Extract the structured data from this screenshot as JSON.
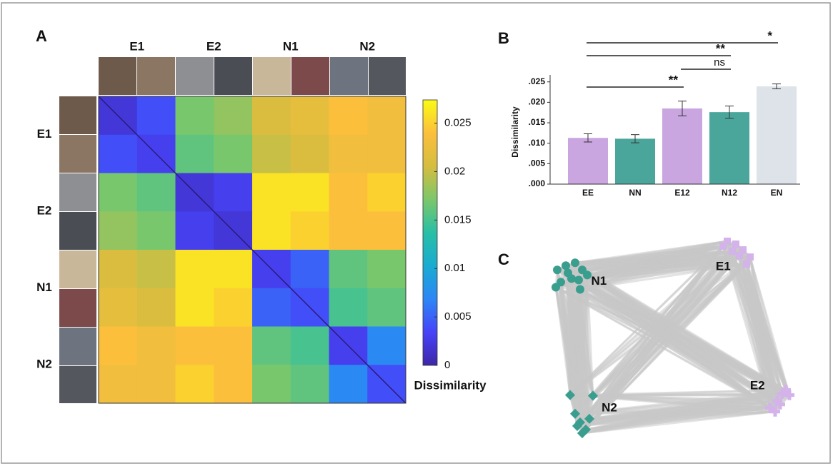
{
  "chart_data": [
    {
      "type": "heatmap",
      "panel_label": "A",
      "row_labels": [
        "E1",
        "E2",
        "N1",
        "N2"
      ],
      "col_labels": [
        "E1",
        "E2",
        "N1",
        "N2"
      ],
      "values": [
        [
          0.002,
          0.004,
          0.017,
          0.018,
          0.021,
          0.022,
          0.024,
          0.023
        ],
        [
          0.004,
          0.003,
          0.016,
          0.017,
          0.02,
          0.021,
          0.023,
          0.023
        ],
        [
          0.017,
          0.016,
          0.002,
          0.003,
          0.026,
          0.026,
          0.024,
          0.025
        ],
        [
          0.018,
          0.017,
          0.003,
          0.002,
          0.026,
          0.025,
          0.024,
          0.024
        ],
        [
          0.021,
          0.02,
          0.026,
          0.026,
          0.003,
          0.005,
          0.016,
          0.017
        ],
        [
          0.022,
          0.021,
          0.026,
          0.025,
          0.005,
          0.004,
          0.015,
          0.016
        ],
        [
          0.024,
          0.023,
          0.024,
          0.024,
          0.016,
          0.015,
          0.003,
          0.007
        ],
        [
          0.023,
          0.023,
          0.025,
          0.024,
          0.017,
          0.016,
          0.007,
          0.004
        ]
      ],
      "colormap": [
        "#3e26a8",
        "#4743f8",
        "#2c87f5",
        "#1aabd1",
        "#28bfa6",
        "#7cc76a",
        "#d5bd3f",
        "#fcbf3c",
        "#f9fb15"
      ],
      "colorbar": {
        "label": "Dissimilarity",
        "lim": [
          0,
          0.0274
        ],
        "ticks": [
          0,
          0.005,
          0.01,
          0.015,
          0.02,
          0.025
        ]
      }
    },
    {
      "type": "bar",
      "panel_label": "B",
      "ylabel": "Dissimilarity",
      "categories": [
        "EE",
        "NN",
        "E12",
        "N12",
        "EN"
      ],
      "values": [
        0.0113,
        0.0111,
        0.0185,
        0.0176,
        0.0239
      ],
      "errors": [
        0.001,
        0.001,
        0.0018,
        0.0015,
        0.0006
      ],
      "colors": [
        "#c9a6e0",
        "#4aa69b",
        "#c9a6e0",
        "#4aa69b",
        "#dde3e8"
      ],
      "ylim": [
        0,
        0.026
      ],
      "yticks": [
        {
          "value": 0,
          "label": ".000"
        },
        {
          "value": 0.005,
          "label": ".005"
        },
        {
          "value": 0.01,
          "label": ".010"
        },
        {
          "value": 0.015,
          "label": ".015"
        },
        {
          "value": 0.02,
          "label": ".020"
        },
        {
          "value": 0.025,
          "label": ".025"
        }
      ],
      "significance": [
        {
          "pair": [
            0,
            4
          ],
          "label": "*"
        },
        {
          "pair": [
            0,
            3
          ],
          "label": "**"
        },
        {
          "pair": [
            2,
            3
          ],
          "label": "ns"
        },
        {
          "pair": [
            0,
            2
          ],
          "label": "**"
        }
      ]
    },
    {
      "type": "scatter",
      "panel_label": "C",
      "series": [
        {
          "name": "N1",
          "color": "#3a9e8f",
          "marker": "circle",
          "x": [
            -1.6,
            -1.48,
            -1.35,
            -1.25,
            -1.4,
            -1.55,
            -1.3,
            -1.18,
            -1.45,
            -1.62,
            -1.28
          ],
          "y": [
            0.92,
            0.98,
            1.02,
            0.92,
            0.8,
            0.75,
            0.78,
            0.85,
            0.88,
            0.68,
            0.65
          ]
        },
        {
          "name": "E1",
          "color": "#d4b2ea",
          "marker": "square",
          "x": [
            0.78,
            0.9,
            1.0,
            0.85,
            1.1,
            1.05,
            0.95,
            0.72
          ],
          "y": [
            1.32,
            1.28,
            1.2,
            1.18,
            1.1,
            1.0,
            1.12,
            1.25
          ]
        },
        {
          "name": "E2",
          "color": "#d4b2ea",
          "marker": "cross",
          "x": [
            1.38,
            1.48,
            1.55,
            1.6,
            1.45,
            1.52,
            1.65
          ],
          "y": [
            -1.0,
            -0.9,
            -0.8,
            -0.75,
            -1.05,
            -0.95,
            -0.82
          ]
        },
        {
          "name": "N2",
          "color": "#3a9e8f",
          "marker": "diamond",
          "x": [
            -1.42,
            -1.1,
            -1.35,
            -1.28,
            -1.2,
            -1.32,
            -1.15,
            -1.25
          ],
          "y": [
            -0.82,
            -0.83,
            -1.08,
            -1.2,
            -1.3,
            -1.25,
            -1.15,
            -1.35
          ]
        }
      ]
    }
  ]
}
